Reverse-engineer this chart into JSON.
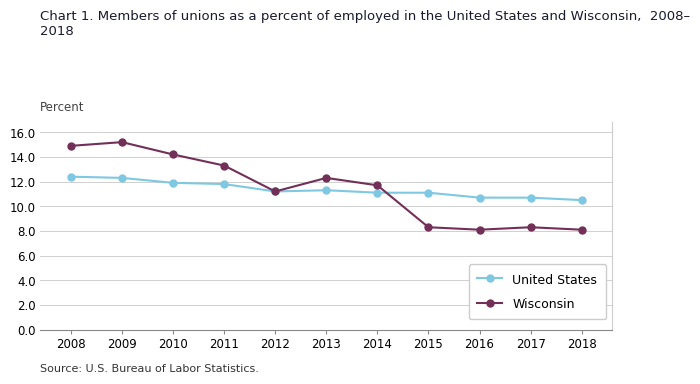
{
  "title_line1": "Chart 1. Members of unions as a percent of employed in the United States and Wisconsin,  2008–",
  "title_line2": "2018",
  "ylabel": "Percent",
  "source": "Source: U.S. Bureau of Labor Statistics.",
  "years": [
    2008,
    2009,
    2010,
    2011,
    2012,
    2013,
    2014,
    2015,
    2016,
    2017,
    2018
  ],
  "us_values": [
    12.4,
    12.3,
    11.9,
    11.8,
    11.2,
    11.3,
    11.1,
    11.1,
    10.7,
    10.7,
    10.5
  ],
  "wi_values": [
    14.9,
    15.2,
    14.2,
    13.3,
    11.2,
    12.3,
    11.7,
    8.3,
    8.1,
    8.3,
    8.1
  ],
  "us_color": "#7EC8E3",
  "wi_color": "#722F57",
  "us_label": "United States",
  "wi_label": "Wisconsin",
  "ylim": [
    0,
    16.8
  ],
  "yticks": [
    0.0,
    2.0,
    4.0,
    6.0,
    8.0,
    10.0,
    12.0,
    14.0,
    16.0
  ],
  "grid_color": "#d0d0d0",
  "bg_color": "#ffffff",
  "title_fontsize": 9.5,
  "tick_fontsize": 8.5,
  "legend_fontsize": 9,
  "source_fontsize": 8,
  "marker_size": 5,
  "line_width": 1.5,
  "title_color": "#1a1a2e",
  "percent_label_color": "#444444"
}
